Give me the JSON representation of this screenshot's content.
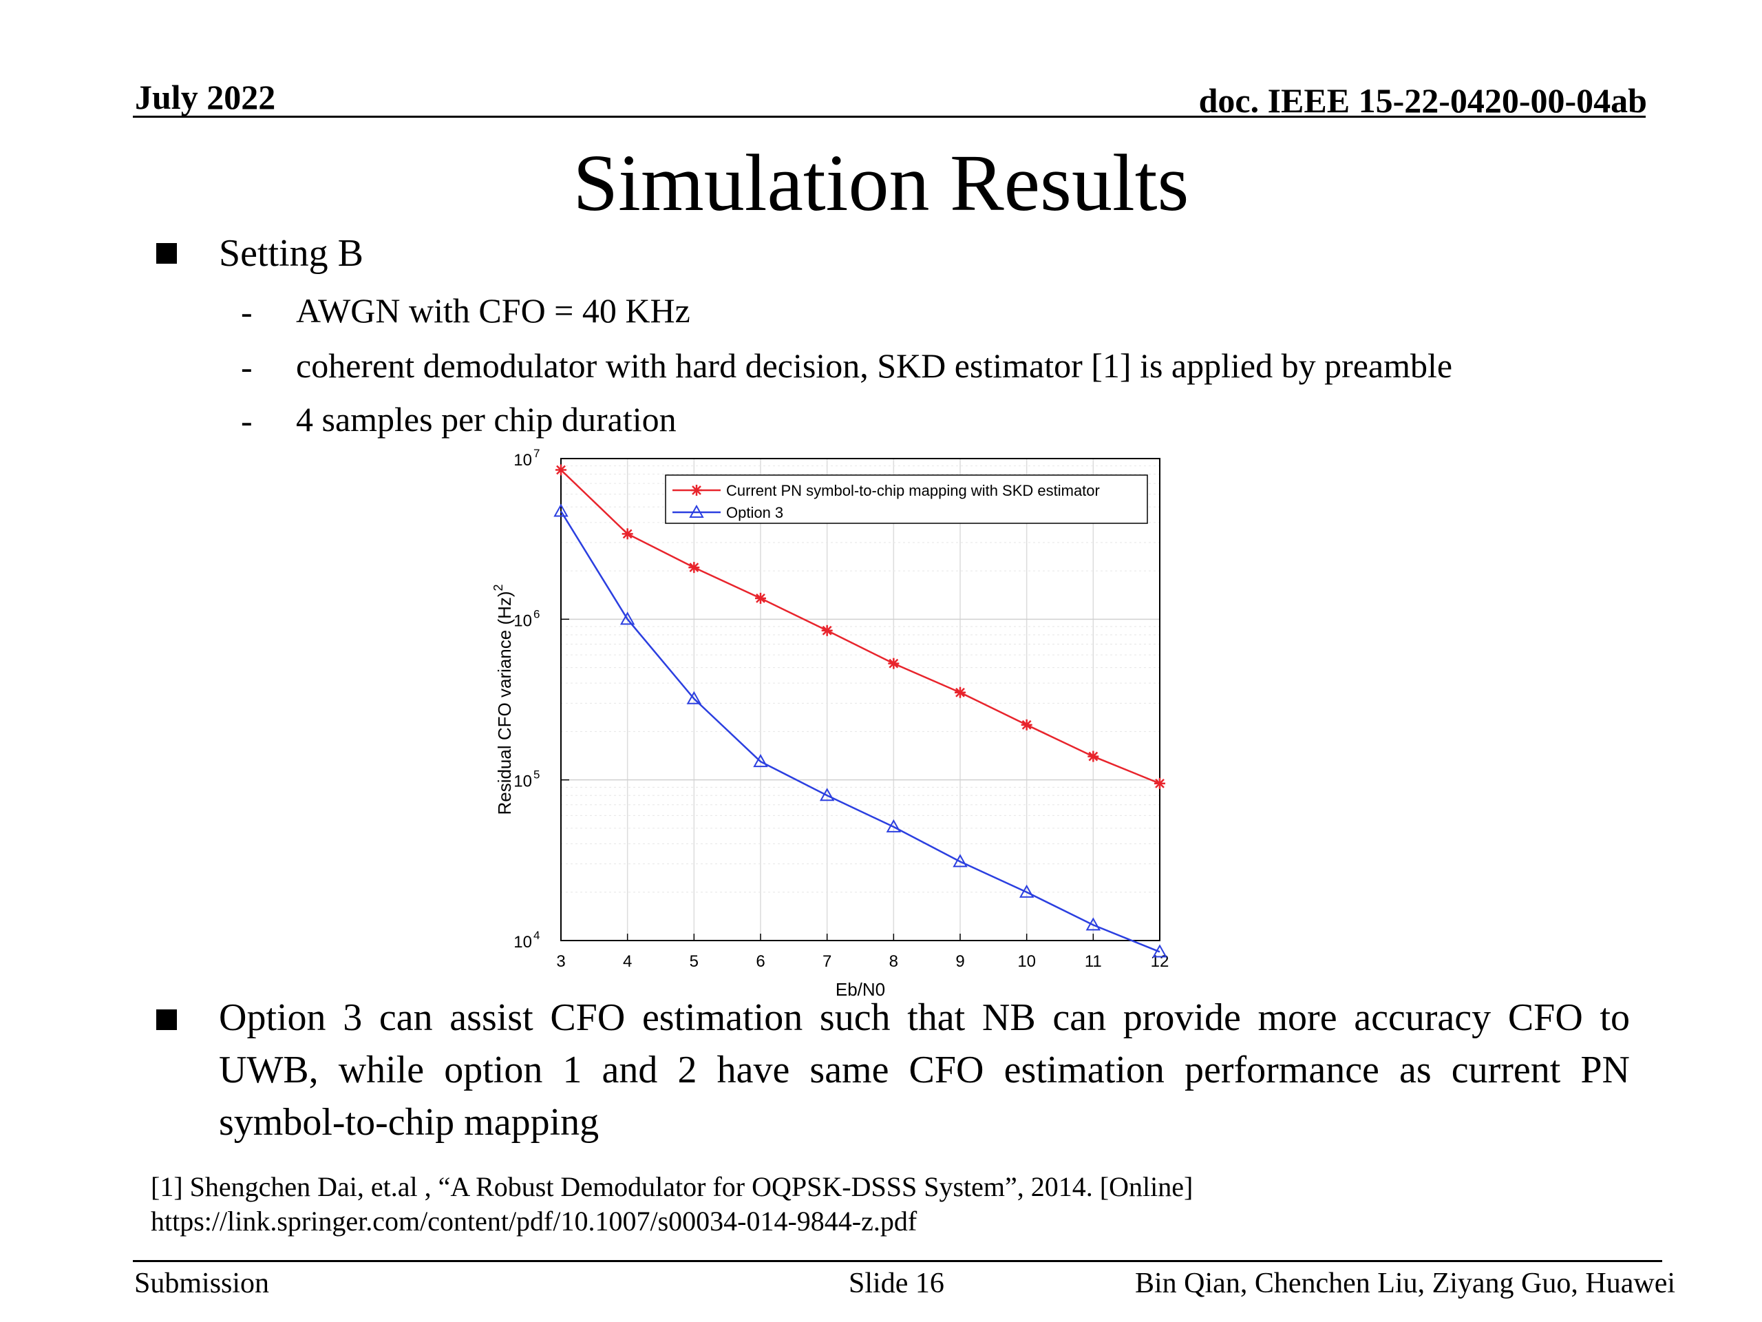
{
  "header": {
    "date": "July 2022",
    "doc_id": "doc. IEEE 15-22-0420-00-04ab"
  },
  "title": "Simulation Results",
  "setting": {
    "heading": "Setting B",
    "items": [
      "AWGN with CFO = 40 KHz",
      "coherent demodulator with hard decision, SKD estimator [1] is applied by preamble",
      "4 samples per chip duration"
    ]
  },
  "chart_data": {
    "type": "line",
    "xlabel": "Eb/N0",
    "ylabel": "Residual CFO variance (Hz)",
    "ylabel_superscript": "2",
    "x": [
      3,
      4,
      5,
      6,
      7,
      8,
      9,
      10,
      11,
      12
    ],
    "xlim": [
      3,
      12
    ],
    "ylim": [
      10000,
      10000000
    ],
    "yscale": "log",
    "y_tick_labels": [
      "10^4",
      "10^5",
      "10^6",
      "10^7"
    ],
    "grid": true,
    "legend_position": "top-right",
    "series": [
      {
        "name": "Current PN symbol-to-chip mapping with SKD estimator",
        "color": "#e8242c",
        "marker": "asterisk",
        "values": [
          8500000,
          3400000,
          2100000,
          1350000,
          850000,
          530000,
          350000,
          220000,
          140000,
          95000
        ]
      },
      {
        "name": "Option 3",
        "color": "#2b3fe0",
        "marker": "triangle",
        "values": [
          4700000,
          1000000,
          320000,
          130000,
          80000,
          51000,
          31000,
          20000,
          12500,
          8500
        ]
      }
    ]
  },
  "conclusion": "Option 3 can assist CFO estimation such that NB can provide more accuracy CFO to UWB, while option 1 and 2 have same CFO estimation performance as current PN symbol-to-chip mapping",
  "reference": {
    "citation": "[1] Shengchen Dai, et.al , “A Robust Demodulator for OQPSK-DSSS System”, 2014. [Online]",
    "url": "https://link.springer.com/content/pdf/10.1007/s00034-014-9844-z.pdf"
  },
  "footer": {
    "left": "Submission",
    "center": "Slide 16",
    "right": "Bin Qian, Chenchen Liu, Ziyang Guo, Huawei"
  }
}
